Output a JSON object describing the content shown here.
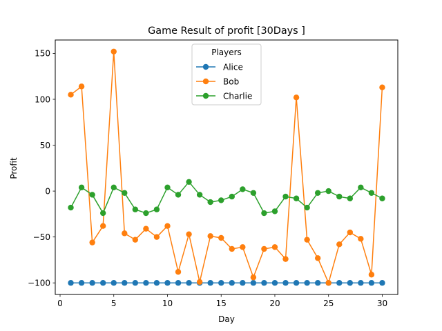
{
  "chart_data": {
    "type": "line",
    "title": "Game Result of profit [30Days ]",
    "xlabel": "Day",
    "ylabel": "Profit",
    "xlim": [
      -0.45,
      31.45
    ],
    "ylim": [
      -112.6,
      164.6
    ],
    "x_ticks": [
      0,
      5,
      10,
      15,
      20,
      25,
      30
    ],
    "y_ticks": [
      -100,
      -50,
      0,
      50,
      100,
      150
    ],
    "legend": {
      "title": "Players",
      "placement": "top-center"
    },
    "x": [
      1,
      2,
      3,
      4,
      5,
      6,
      7,
      8,
      9,
      10,
      11,
      12,
      13,
      14,
      15,
      16,
      17,
      18,
      19,
      20,
      21,
      22,
      23,
      24,
      25,
      26,
      27,
      28,
      29,
      30
    ],
    "series": [
      {
        "name": "Alice",
        "color": "#1f77b4",
        "values": [
          -100,
          -100,
          -100,
          -100,
          -100,
          -100,
          -100,
          -100,
          -100,
          -100,
          -100,
          -100,
          -100,
          -100,
          -100,
          -100,
          -100,
          -100,
          -100,
          -100,
          -100,
          -100,
          -100,
          -100,
          -100,
          -100,
          -100,
          -100,
          -100,
          -100
        ]
      },
      {
        "name": "Bob",
        "color": "#ff7f0e",
        "values": [
          105,
          114,
          -56,
          -38,
          152,
          -46,
          -53,
          -41,
          -50,
          -38,
          -88,
          -47,
          -99,
          -49,
          -51,
          -63,
          -61,
          -94,
          -63,
          -61,
          -74,
          102,
          -53,
          -73,
          -100,
          -58,
          -45,
          -52,
          -91,
          113
        ]
      },
      {
        "name": "Charlie",
        "color": "#2ca02c",
        "values": [
          -18,
          4,
          -4,
          -24,
          4,
          -2,
          -20,
          -24,
          -20,
          4,
          -4,
          10,
          -4,
          -12,
          -10,
          -6,
          2,
          -2,
          -24,
          -22,
          -6,
          -8,
          -18,
          -2,
          0,
          -6,
          -8,
          4,
          -2,
          -8
        ]
      }
    ]
  }
}
